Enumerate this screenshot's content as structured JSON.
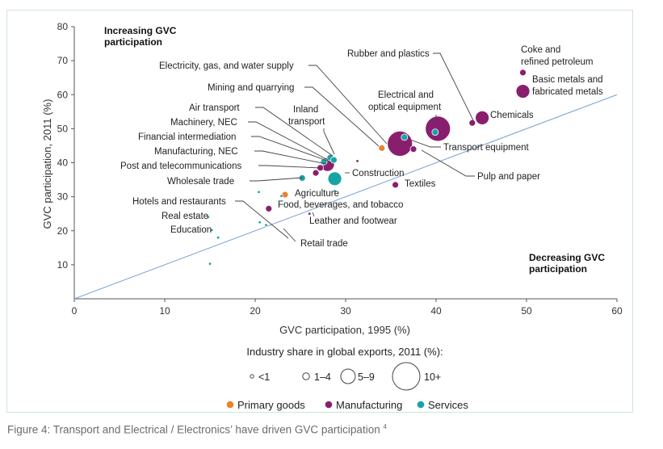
{
  "chart_data": {
    "type": "scatter",
    "xlabel": "GVC participation, 1995 (%)",
    "ylabel": "GVC participation, 2011 (%)",
    "xlim": [
      0,
      60
    ],
    "ylim": [
      0,
      80
    ],
    "xticks": [
      0,
      10,
      20,
      30,
      40,
      50,
      60
    ],
    "yticks": [
      10,
      20,
      30,
      40,
      50,
      60,
      70,
      80
    ],
    "reference_line": "45-degree diagonal",
    "annotations": {
      "increasing": [
        "Increasing GVC",
        "participation"
      ],
      "decreasing": [
        "Decreasing GVC",
        "participation"
      ]
    },
    "size_legend": {
      "title": "Industry share in global exports, 2011 (%):",
      "labels": [
        "<1",
        "1–4",
        "5–9",
        "10+"
      ]
    },
    "color_legend": [
      {
        "name": "Primary goods",
        "color": "#e8832a"
      },
      {
        "name": "Manufacturing",
        "color": "#8a1e6e"
      },
      {
        "name": "Services",
        "color": "#17a4a6"
      }
    ],
    "points": [
      {
        "label": "Coke and refined petroleum",
        "x": 49.6,
        "y": 66.5,
        "group": "Manufacturing",
        "size": "1–4"
      },
      {
        "label": "Basic metals and fabricated metals",
        "x": 49.6,
        "y": 61.0,
        "group": "Manufacturing",
        "size": "5–9"
      },
      {
        "label": "Chemicals",
        "x": 45.1,
        "y": 53.2,
        "group": "Manufacturing",
        "size": "5–9"
      },
      {
        "label": "Rubber and plastics",
        "x": 44.0,
        "y": 51.7,
        "group": "Manufacturing",
        "size": "1–4"
      },
      {
        "label": "Electrical and optical equipment",
        "x": 40.2,
        "y": 50.0,
        "group": "Manufacturing",
        "size": "10+"
      },
      {
        "label": "",
        "x": 39.9,
        "y": 49.0,
        "group": "Services",
        "size": "1–4"
      },
      {
        "label": "Transport equipment",
        "x": 36.0,
        "y": 45.6,
        "group": "Manufacturing",
        "size": "10+"
      },
      {
        "label": "Electricity, gas, and water supply",
        "x": 36.5,
        "y": 47.5,
        "group": "Services",
        "size": "1–4"
      },
      {
        "label": "Mining and quarrying",
        "x": 34.0,
        "y": 44.3,
        "group": "Primary goods",
        "size": "1–4"
      },
      {
        "label": "Pulp and paper",
        "x": 37.5,
        "y": 44.0,
        "group": "Manufacturing",
        "size": "1–4"
      },
      {
        "label": "Textiles",
        "x": 35.5,
        "y": 33.5,
        "group": "Manufacturing",
        "size": "1–4"
      },
      {
        "label": "",
        "x": 31.3,
        "y": 40.5,
        "group": "Manufacturing",
        "size": "<1"
      },
      {
        "label": "Air transport",
        "x": 28.3,
        "y": 41.5,
        "group": "Services",
        "size": "1–4"
      },
      {
        "label": "Machinery, NEC",
        "x": 28.0,
        "y": 39.5,
        "group": "Manufacturing",
        "size": "5–9"
      },
      {
        "label": "Financial intermediation",
        "x": 27.6,
        "y": 40.3,
        "group": "Services",
        "size": "1–4"
      },
      {
        "label": "Inland transport",
        "x": 28.7,
        "y": 40.8,
        "group": "Services",
        "size": "1–4"
      },
      {
        "label": "Manufacturing, NEC",
        "x": 27.2,
        "y": 38.5,
        "group": "Manufacturing",
        "size": "1–4"
      },
      {
        "label": "Post and telecommunications",
        "x": 26.7,
        "y": 37.0,
        "group": "Manufacturing",
        "size": "1–4"
      },
      {
        "label": "Wholesale trade",
        "x": 25.2,
        "y": 35.5,
        "group": "Services",
        "size": "1–4"
      },
      {
        "label": "Construction",
        "x": 28.8,
        "y": 35.3,
        "group": "Services",
        "size": "5–9"
      },
      {
        "label": "",
        "x": 28.8,
        "y": 31.7,
        "group": "Services",
        "size": "<1"
      },
      {
        "label": "Agriculture",
        "x": 23.3,
        "y": 30.6,
        "group": "Primary goods",
        "size": "1–4"
      },
      {
        "label": "",
        "x": 22.9,
        "y": 30.2,
        "group": "Services",
        "size": "<1"
      },
      {
        "label": "",
        "x": 20.4,
        "y": 31.4,
        "group": "Services",
        "size": "<1"
      },
      {
        "label": "Food, beverages, and tobacco",
        "x": 21.5,
        "y": 26.5,
        "group": "Manufacturing",
        "size": "1–4"
      },
      {
        "label": "Leather and footwear",
        "x": 26.0,
        "y": 25.0,
        "group": "Manufacturing",
        "size": "<1"
      },
      {
        "label": "Hotels and restaurants",
        "x": 20.5,
        "y": 22.5,
        "group": "Services",
        "size": "<1"
      },
      {
        "label": "Retail trade",
        "x": 21.2,
        "y": 21.7,
        "group": "Services",
        "size": "<1"
      },
      {
        "label": "Real estate",
        "x": 14.8,
        "y": 24.0,
        "group": "Services",
        "size": "<1"
      },
      {
        "label": "Education",
        "x": 15.2,
        "y": 20.2,
        "group": "Services",
        "size": "<1"
      },
      {
        "label": "",
        "x": 15.9,
        "y": 18.0,
        "group": "Services",
        "size": "<1"
      },
      {
        "label": "",
        "x": 15.0,
        "y": 10.3,
        "group": "Services",
        "size": "<1"
      }
    ]
  },
  "caption": "Figure 4: Transport and Electrical / Electronics’ have driven GVC participation",
  "caption_note": "4"
}
